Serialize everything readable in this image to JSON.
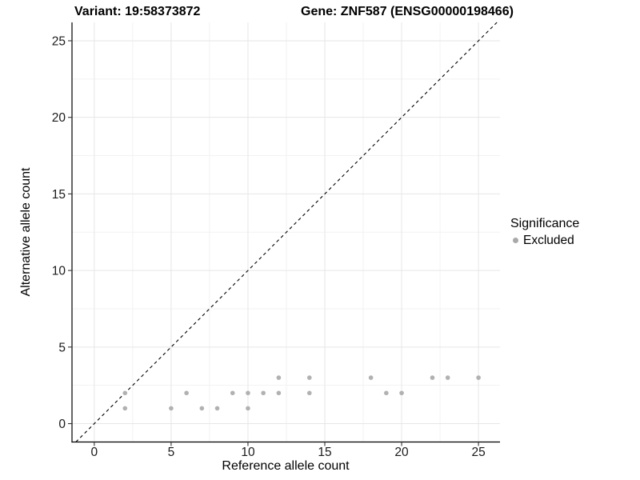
{
  "chart_data": {
    "type": "scatter",
    "title_left": "Variant: 19:58373872",
    "title_right": "Gene: ZNF587 (ENSG00000198466)",
    "xlabel": "Reference allele count",
    "ylabel": "Alternative allele count",
    "xlim": [
      -1.45,
      26.4
    ],
    "ylim": [
      -1.2,
      26.2
    ],
    "x_ticks": [
      0,
      5,
      10,
      15,
      20,
      25
    ],
    "y_ticks": [
      0,
      5,
      10,
      15,
      20,
      25
    ],
    "minor_ticks": [
      2.5,
      7.5,
      12.5,
      17.5,
      22.5
    ],
    "grid": true,
    "reference_line": {
      "equation": "y = x",
      "style": "dashed",
      "color": "#000000"
    },
    "series": [
      {
        "name": "Excluded",
        "color": "#b1b1b1",
        "points": [
          [
            2,
            1
          ],
          [
            5,
            1
          ],
          [
            7,
            1
          ],
          [
            8,
            1
          ],
          [
            10,
            1
          ],
          [
            2,
            2
          ],
          [
            6,
            2
          ],
          [
            9,
            2
          ],
          [
            10,
            2
          ],
          [
            11,
            2
          ],
          [
            12,
            2
          ],
          [
            14,
            2
          ],
          [
            19,
            2
          ],
          [
            20,
            2
          ],
          [
            12,
            3
          ],
          [
            14,
            3
          ],
          [
            18,
            3
          ],
          [
            22,
            3
          ],
          [
            23,
            3
          ],
          [
            25,
            3
          ]
        ]
      }
    ],
    "legend": {
      "title": "Significance",
      "position": "right",
      "items": [
        {
          "label": "Excluded",
          "color": "#a9a9a9"
        }
      ]
    },
    "colors": {
      "grid_major": "#e6e6e6",
      "grid_minor": "#f2f2f2",
      "axis_line": "#000000",
      "tick_mark": "#333333",
      "tick_label": "#1a1a1a",
      "point": "#b1b1b1"
    }
  }
}
